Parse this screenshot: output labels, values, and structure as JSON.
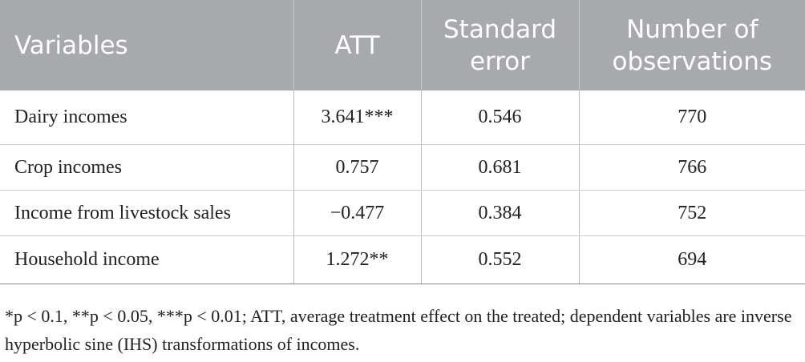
{
  "table": {
    "header": [
      "Variables",
      "ATT",
      "Standard error",
      "Number of observations"
    ],
    "rows": [
      [
        "Dairy incomes",
        "3.641***",
        "0.546",
        "770"
      ],
      [
        "Crop incomes",
        "0.757",
        "0.681",
        "766"
      ],
      [
        "Income from livestock sales",
        "−0.477",
        "0.384",
        "752"
      ],
      [
        "Household income",
        "1.272**",
        "0.552",
        "694"
      ]
    ]
  },
  "footnote": "*p < 0.1, **p < 0.05, ***p < 0.01; ATT, average treatment effect on the treated; dependent variables are inverse hyperbolic sine (IHS) transformations of incomes."
}
